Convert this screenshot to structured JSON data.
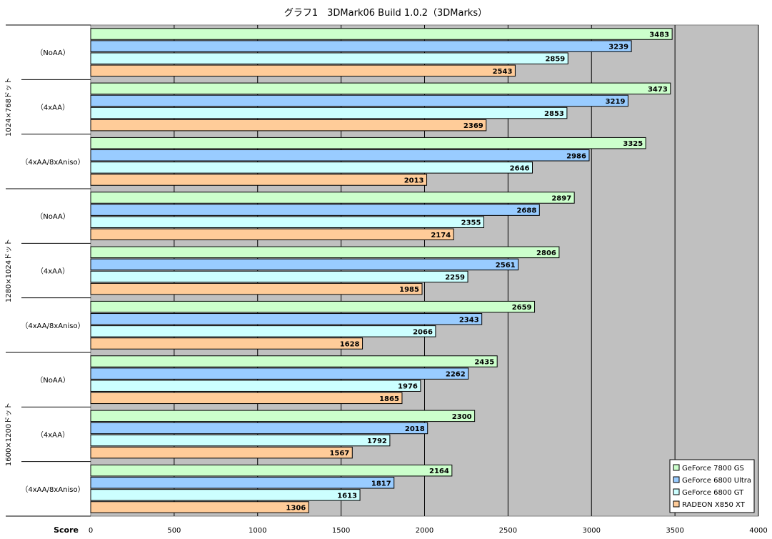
{
  "chart_data": {
    "type": "bar",
    "orientation": "horizontal",
    "title": "グラフ1　3DMark06 Build 1.0.2（3DMarks）",
    "xlabel": "Score",
    "xlim": [
      0,
      4000
    ],
    "x_ticks": [
      0,
      500,
      1000,
      1500,
      2000,
      2500,
      3000,
      3500,
      4000
    ],
    "grid": true,
    "plot_background": "#c0c0c0",
    "legend_position": "bottom-right",
    "groups": [
      {
        "label": "1024×768ドット",
        "categories": [
          "（NoAA）",
          "（4xAA）",
          "（4xAA/8xAniso）"
        ]
      },
      {
        "label": "1280×1024ドット",
        "categories": [
          "（NoAA）",
          "（4xAA）",
          "（4xAA/8xAniso）"
        ]
      },
      {
        "label": "1600×1200ドット",
        "categories": [
          "（NoAA）",
          "（4xAA）",
          "（4xAA/8xAniso）"
        ]
      }
    ],
    "series": [
      {
        "name": "GeForce 7800 GS",
        "color": "#ccffcc",
        "values": [
          3483,
          3473,
          3325,
          2897,
          2806,
          2659,
          2435,
          2300,
          2164
        ]
      },
      {
        "name": "GeForce 6800 Ultra",
        "color": "#99ccff",
        "values": [
          3239,
          3219,
          2986,
          2688,
          2561,
          2343,
          2262,
          2018,
          1817
        ]
      },
      {
        "name": "GeForce 6800 GT",
        "color": "#ccffff",
        "values": [
          2859,
          2853,
          2646,
          2355,
          2259,
          2066,
          1976,
          1792,
          1613
        ]
      },
      {
        "name": "RADEON X850 XT",
        "color": "#ffcc99",
        "values": [
          2543,
          2369,
          2013,
          2174,
          1985,
          1628,
          1865,
          1567,
          1306
        ]
      }
    ]
  }
}
